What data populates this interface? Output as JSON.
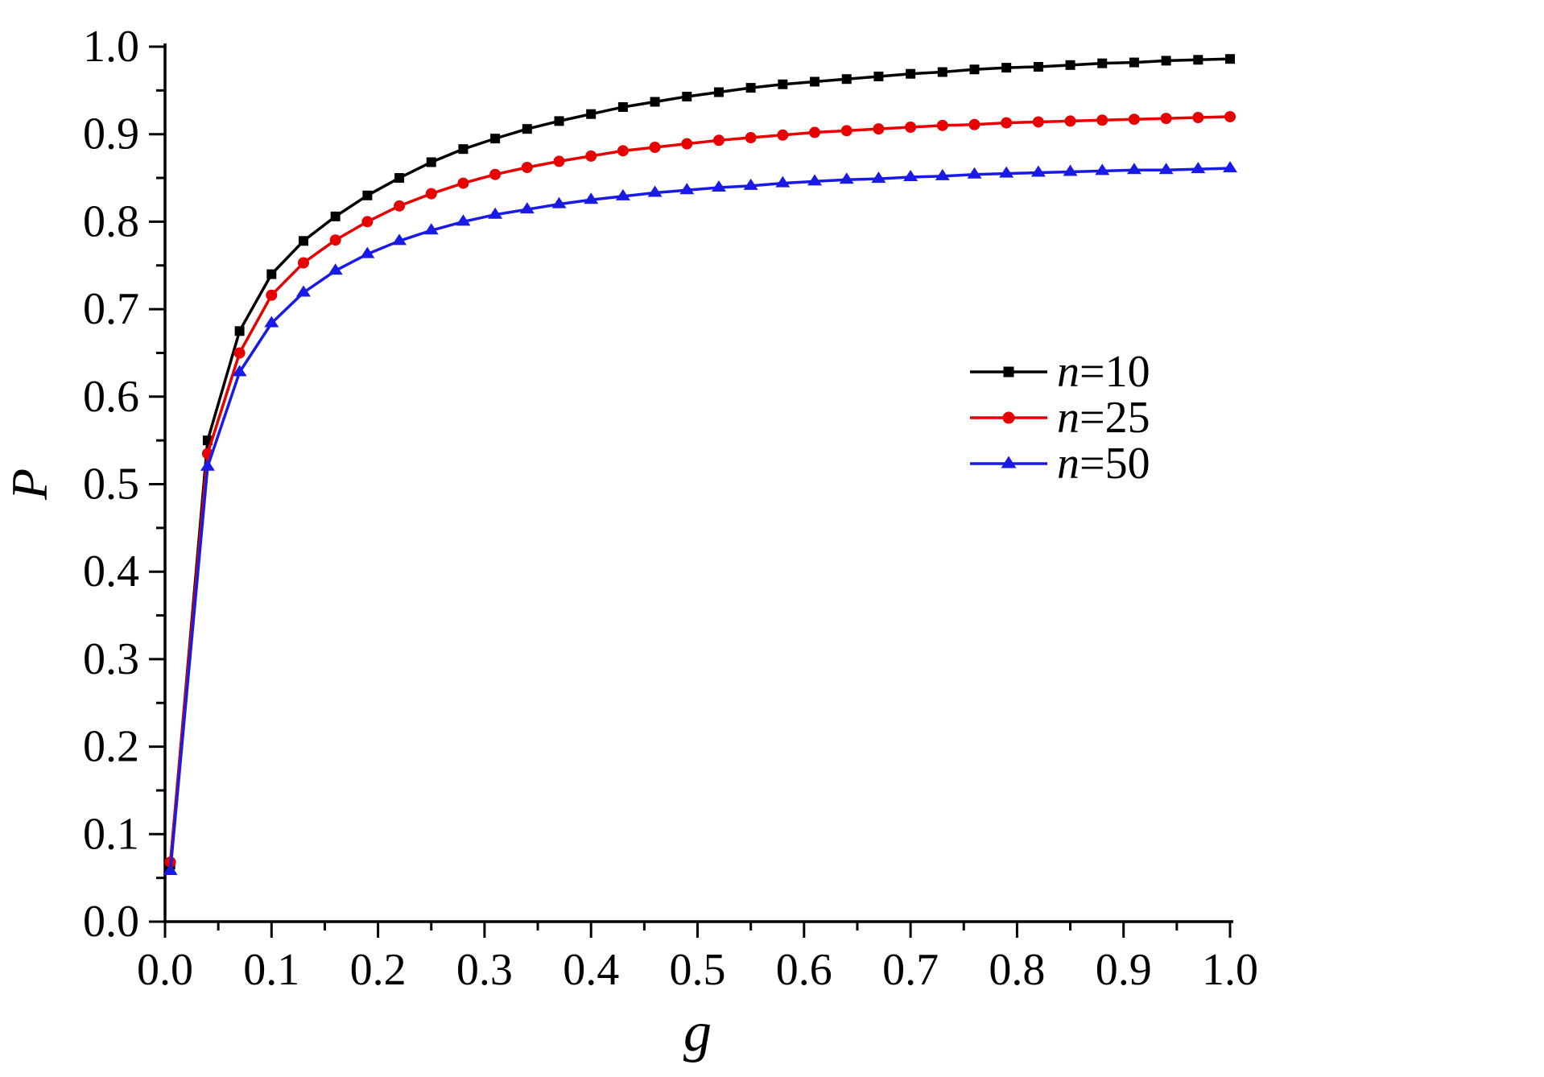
{
  "figure": {
    "background": "#ffffff"
  },
  "chart_data": {
    "type": "line",
    "title": "",
    "xlabel": "g",
    "ylabel": "P",
    "xlim": [
      0.0,
      1.0
    ],
    "ylim": [
      0.0,
      1.0
    ],
    "x_ticks": [
      0.0,
      0.1,
      0.2,
      0.3,
      0.4,
      0.5,
      0.6,
      0.7,
      0.8,
      0.9,
      1.0
    ],
    "y_ticks": [
      0.0,
      0.1,
      0.2,
      0.3,
      0.4,
      0.5,
      0.6,
      0.7,
      0.8,
      0.9,
      1.0
    ],
    "x_minor_step": 0.05,
    "y_minor_step": 0.05,
    "grid": false,
    "legend_position": "right-center",
    "axis_color": "#000000",
    "x": [
      0.005,
      0.04,
      0.07,
      0.1,
      0.13,
      0.16,
      0.19,
      0.22,
      0.25,
      0.28,
      0.31,
      0.34,
      0.37,
      0.4,
      0.43,
      0.46,
      0.49,
      0.52,
      0.55,
      0.58,
      0.61,
      0.64,
      0.67,
      0.7,
      0.73,
      0.76,
      0.79,
      0.82,
      0.85,
      0.88,
      0.91,
      0.94,
      0.97,
      1.0
    ],
    "series": [
      {
        "name": "n=10",
        "color": "#000000",
        "marker": "square",
        "values": [
          0.065,
          0.55,
          0.675,
          0.74,
          0.778,
          0.806,
          0.83,
          0.85,
          0.868,
          0.883,
          0.895,
          0.906,
          0.915,
          0.923,
          0.931,
          0.937,
          0.943,
          0.948,
          0.953,
          0.957,
          0.96,
          0.963,
          0.966,
          0.969,
          0.971,
          0.974,
          0.976,
          0.977,
          0.979,
          0.981,
          0.982,
          0.984,
          0.985,
          0.986
        ]
      },
      {
        "name": "n=25",
        "color": "#e60000",
        "marker": "circle",
        "values": [
          0.068,
          0.535,
          0.65,
          0.716,
          0.753,
          0.779,
          0.8,
          0.818,
          0.832,
          0.844,
          0.854,
          0.862,
          0.869,
          0.875,
          0.881,
          0.885,
          0.889,
          0.893,
          0.896,
          0.899,
          0.902,
          0.904,
          0.906,
          0.908,
          0.91,
          0.911,
          0.913,
          0.914,
          0.915,
          0.916,
          0.917,
          0.918,
          0.919,
          0.92
        ]
      },
      {
        "name": "n=50",
        "color": "#1a1ae6",
        "marker": "triangle",
        "values": [
          0.058,
          0.52,
          0.628,
          0.684,
          0.719,
          0.744,
          0.763,
          0.778,
          0.79,
          0.8,
          0.808,
          0.814,
          0.82,
          0.825,
          0.829,
          0.833,
          0.836,
          0.839,
          0.841,
          0.844,
          0.846,
          0.848,
          0.849,
          0.851,
          0.852,
          0.854,
          0.855,
          0.856,
          0.857,
          0.858,
          0.859,
          0.859,
          0.86,
          0.861
        ]
      }
    ]
  }
}
